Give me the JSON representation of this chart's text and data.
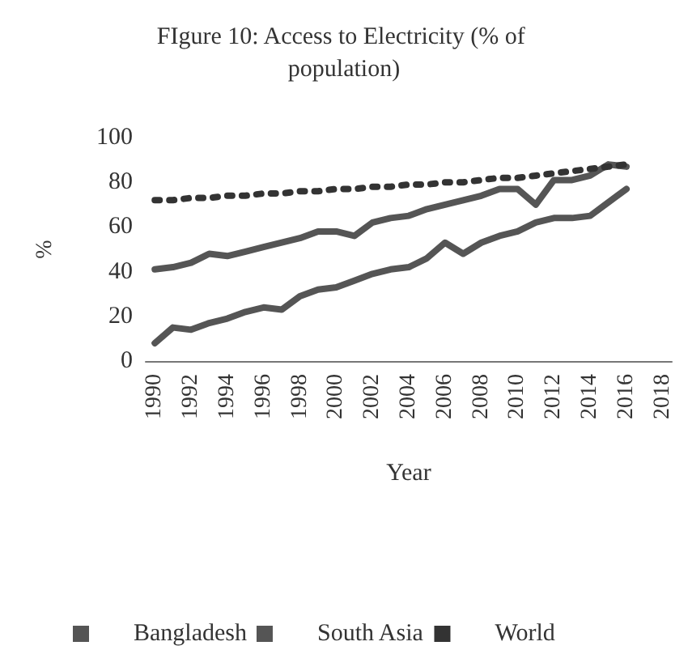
{
  "chart_data": {
    "type": "line",
    "title": "FIgure 10: Access to Electricity (% of population)",
    "xlabel": "Year",
    "ylabel": "%",
    "categories": [
      "1990",
      null,
      "1992",
      null,
      "1994",
      null,
      "1996",
      null,
      "1998",
      null,
      "2000",
      null,
      "2002",
      null,
      "2004",
      null,
      "2006",
      null,
      "2008",
      null,
      "2010",
      null,
      "2012",
      null,
      "2014",
      null,
      "2016",
      null,
      "2018"
    ],
    "series": [
      {
        "name": "Bangladesh",
        "color": "#555555",
        "line_style": "solid",
        "values": [
          8,
          15,
          14,
          17,
          19,
          22,
          24,
          23,
          29,
          32,
          33,
          36,
          39,
          41,
          42,
          46,
          53,
          48,
          53,
          56,
          58,
          62,
          64,
          64,
          65,
          71,
          77,
          null,
          null
        ]
      },
      {
        "name": "South Asia",
        "color": "#555555",
        "line_style": "solid",
        "values": [
          41,
          42,
          44,
          48,
          47,
          49,
          51,
          53,
          55,
          58,
          58,
          56,
          62,
          64,
          65,
          68,
          70,
          72,
          74,
          77,
          77,
          70,
          81,
          81,
          83,
          88,
          87,
          null,
          null
        ]
      },
      {
        "name": "World",
        "color": "#333333",
        "line_style": "dotted",
        "values": [
          72,
          72,
          73,
          73,
          74,
          74,
          75,
          75,
          76,
          76,
          77,
          77,
          78,
          78,
          79,
          79,
          80,
          80,
          81,
          82,
          82,
          83,
          84,
          85,
          86,
          87,
          88,
          null,
          null
        ]
      }
    ],
    "ylim": [
      0,
      100
    ],
    "yticks": [
      0,
      20,
      40,
      60,
      80,
      100
    ],
    "grid": false,
    "legend": "bottom",
    "marker": "none"
  }
}
